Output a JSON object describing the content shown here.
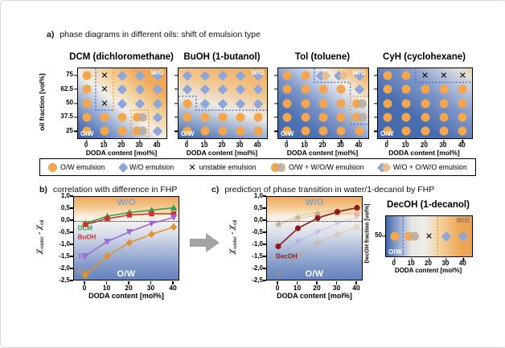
{
  "panel_a": {
    "label": "a)",
    "title": "phase diagrams in different oils: shift of emulsion type",
    "y_axis_title": "oil fraction [vol%]",
    "x_axis_title": "DODA content [mol%]",
    "y_ticks": [
      "75",
      "62.5",
      "50",
      "37.5",
      "25"
    ],
    "x_ticks": [
      "0",
      "10",
      "20",
      "30",
      "40"
    ],
    "diagrams": [
      {
        "name": "DCM",
        "title": "DCM (dichloromethane)",
        "bg": "dcm",
        "label_top": "W/O",
        "label_bottom": "O/W",
        "grid": [
          [
            "O",
            "X",
            "D",
            "D",
            "D"
          ],
          [
            "O",
            "X",
            "D",
            "D",
            "D"
          ],
          [
            "O",
            "X",
            "D",
            "D",
            "D"
          ],
          [
            "O",
            "O",
            "O",
            "OD",
            "D"
          ],
          [
            "O",
            "O",
            "O",
            "OD",
            "D"
          ]
        ],
        "boundaries": [
          {
            "color": "#4A6FD0",
            "points": [
              [
                20,
                0
              ],
              [
                20,
                60
              ],
              [
                40,
                60
              ]
            ]
          },
          {
            "color": "#E59A35",
            "points": [
              [
                40,
                0
              ],
              [
                40,
                60
              ]
            ]
          },
          {
            "color": "#E59A35",
            "points": [
              [
                60,
                100
              ],
              [
                60,
                60
              ],
              [
                80,
                60
              ],
              [
                80,
                100
              ]
            ]
          }
        ]
      },
      {
        "name": "BuOH",
        "title": "BuOH (1-butanol)",
        "bg": "buoh",
        "label_top": "W/O",
        "label_bottom": "O/W",
        "grid": [
          [
            "D",
            "D",
            "D",
            "D",
            "D"
          ],
          [
            "D",
            "D",
            "D",
            "D",
            "D"
          ],
          [
            "O",
            "D",
            "D",
            "D",
            "D"
          ],
          [
            "O",
            "O",
            "O",
            "O",
            "O"
          ],
          [
            "O",
            "O",
            "O",
            "O",
            "O"
          ]
        ],
        "boundaries": [
          {
            "color": "#4A6FD0",
            "points": [
              [
                0,
                40
              ],
              [
                20,
                40
              ],
              [
                20,
                60
              ],
              [
                100,
                60
              ]
            ]
          }
        ]
      },
      {
        "name": "Tol",
        "title": "Tol (toluene)",
        "bg": "tol",
        "label_top": "W/O",
        "label_bottom": "O/W",
        "grid": [
          [
            "O",
            "O",
            "DD",
            "DD",
            "D"
          ],
          [
            "O",
            "O",
            "O",
            "O",
            "D"
          ],
          [
            "O",
            "O",
            "O",
            "O",
            "OD"
          ],
          [
            "O",
            "O",
            "O",
            "O",
            "OD"
          ],
          [
            "O",
            "O",
            "O",
            "O",
            "O"
          ]
        ],
        "boundaries": [
          {
            "color": "#4A6FD0",
            "points": [
              [
                40,
                0
              ],
              [
                40,
                20
              ],
              [
                80,
                20
              ],
              [
                80,
                40
              ]
            ]
          },
          {
            "color": "#E59A35",
            "points": [
              [
                100,
                40
              ],
              [
                80,
                40
              ],
              [
                80,
                80
              ]
            ]
          },
          {
            "color": "#4A6FD0",
            "points": [
              [
                80,
                80
              ],
              [
                100,
                80
              ]
            ]
          }
        ]
      },
      {
        "name": "CyH",
        "title": "CyH (cyclohexane)",
        "bg": "cyh",
        "label_top": "",
        "label_bottom": "O/W",
        "grid": [
          [
            "O",
            "O",
            "X",
            "X",
            "X"
          ],
          [
            "O",
            "O",
            "O",
            "O",
            "O"
          ],
          [
            "O",
            "O",
            "O",
            "O",
            "O"
          ],
          [
            "O",
            "O",
            "O",
            "O",
            "O"
          ],
          [
            "O",
            "O",
            "O",
            "O",
            "O"
          ]
        ],
        "boundaries": [
          {
            "color": "#4A6FD0",
            "points": [
              [
                40,
                0
              ],
              [
                40,
                20
              ],
              [
                100,
                20
              ]
            ]
          }
        ]
      }
    ],
    "legend": [
      {
        "marker": "O",
        "label": "O/W emulsion"
      },
      {
        "marker": "D",
        "label": "W/O emulsion"
      },
      {
        "marker": "X",
        "label": "unstable emulsion"
      },
      {
        "marker": "OD",
        "label": "O/W + W/O/W emulsion"
      },
      {
        "marker": "DD",
        "label": "W/O + O/W/O emulsion"
      }
    ],
    "marker_colors": {
      "ow": "#F4A64E",
      "wo": "#8FA6D9",
      "mixed_gray": "#BBAC9B",
      "mixed_orange": "#E9BD85"
    }
  },
  "panel_b": {
    "label": "b)",
    "title": "correlation with difference in FHP"
  },
  "panel_c": {
    "label": "c)",
    "title": "prediction of phase transition in water/1-decanol by FHP",
    "mini": {
      "title": "DecOH (1-decanol)",
      "y_axis_title": "DecOH fraction [vol%]",
      "y_tick": "50",
      "x_ticks": [
        "0",
        "10",
        "20",
        "30",
        "40"
      ],
      "x_axis_title": "DODA content [mol%]",
      "label_top": "W/O",
      "label_top_color": "#8A7A6A",
      "label_bottom": "O/W",
      "bg": "mini",
      "grid": [
        [
          "O",
          "OD",
          "X",
          "D",
          "D"
        ]
      ],
      "boundaries": [
        {
          "color": "#4A6FD0",
          "points": [
            [
              20,
              0
            ],
            [
              20,
              100
            ]
          ]
        },
        {
          "color": "#E59A35",
          "points": [
            [
              60,
              0
            ],
            [
              60,
              100
            ]
          ]
        }
      ]
    }
  },
  "axis_y": {
    "chi": "χ",
    "sub1": "water",
    "minus": " - ",
    "sub2": "oil"
  },
  "chart_data": [
    {
      "id": "b",
      "type": "line",
      "title": "correlation with difference in FHP",
      "xlabel": "DODA content [mol%]",
      "ylabel": "χwater - χoil",
      "x": [
        0,
        10,
        20,
        30,
        40
      ],
      "ylim": [
        -2.5,
        1.0
      ],
      "y_ticks": [
        "1,0",
        "0,5",
        "0,0",
        "-0,5",
        "-1,0",
        "-1,5",
        "-2,0",
        "-2,5"
      ],
      "zero_line": true,
      "grid": false,
      "legend_position": "in-plot-labels",
      "region_top": "W/O",
      "region_bottom": "O/W",
      "series": [
        {
          "name": "DCM",
          "color": "#2F9E44",
          "marker": "triangle-up",
          "values": [
            -0.1,
            0.2,
            0.35,
            0.45,
            0.55
          ],
          "label_pos": [
            -3.4,
            -0.38
          ]
        },
        {
          "name": "BuOH",
          "color": "#D1322F",
          "marker": "square",
          "values": [
            -0.15,
            0.1,
            0.25,
            0.3,
            0.3
          ],
          "label_pos": [
            -3.4,
            -0.75
          ]
        },
        {
          "name": "Tol",
          "color": "#9A6BD4",
          "marker": "triangle-down",
          "values": [
            -1.45,
            -0.85,
            -0.45,
            -0.1,
            0.15
          ],
          "label_pos": [
            -3.4,
            -1.55
          ]
        },
        {
          "name": "CyH",
          "color": "#E2912F",
          "marker": "diamond",
          "values": [
            -2.25,
            -1.45,
            -0.9,
            -0.55,
            -0.25
          ],
          "label_pos": [
            -3.4,
            -2.2
          ]
        }
      ]
    },
    {
      "id": "c",
      "type": "line",
      "title": "prediction of phase transition in water/1-decanol by FHP",
      "xlabel": "DODA content [mol%]",
      "ylabel": "χwater - χoil",
      "x": [
        0,
        10,
        20,
        30,
        40
      ],
      "ylim": [
        -2.5,
        1.0
      ],
      "y_ticks": [
        "1,0",
        "0,5",
        "0,0",
        "-0,5",
        "-1,0",
        "-1,5",
        "-2,0",
        "-2,5"
      ],
      "zero_line": true,
      "grid": false,
      "region_top": "W/O",
      "region_bottom": "O/W",
      "series": [
        {
          "name": "DCM",
          "color": "#2F9E44",
          "marker": "triangle-up",
          "values": [
            -0.1,
            0.2,
            0.35,
            0.45,
            0.55
          ],
          "ghost": true
        },
        {
          "name": "BuOH",
          "color": "#D1322F",
          "marker": "square",
          "values": [
            -0.15,
            0.1,
            0.25,
            0.3,
            0.3
          ],
          "ghost": true
        },
        {
          "name": "Tol",
          "color": "#9A6BD4",
          "marker": "triangle-down",
          "values": [
            -1.45,
            -0.85,
            -0.45,
            -0.1,
            0.15
          ],
          "ghost": true
        },
        {
          "name": "CyH",
          "color": "#E2912F",
          "marker": "diamond",
          "values": [
            -2.25,
            -1.45,
            -0.9,
            -0.55,
            -0.25
          ],
          "ghost": true
        },
        {
          "name": "DecOH",
          "color": "#8E1B1B",
          "marker": "circle",
          "values": [
            -1.05,
            -0.3,
            0.12,
            0.38,
            0.55
          ],
          "label_pos": [
            -1.2,
            -1.55
          ]
        }
      ]
    }
  ]
}
